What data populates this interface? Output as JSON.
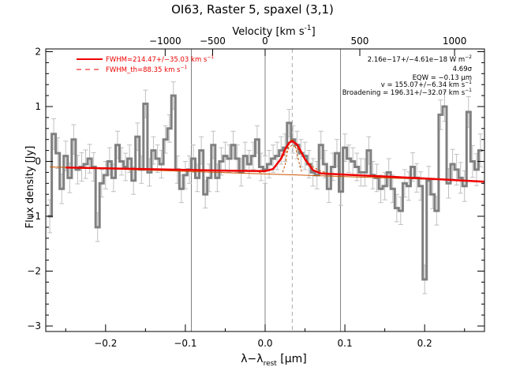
{
  "chart_data": {
    "type": "line",
    "title": "OI63, Raster 5, spaxel (3,1)",
    "xlabel": "λ−λ",
    "xlabel_sub": "rest",
    "xlabel_unit": " [μm]",
    "ylabel": "Flux density [Jy]",
    "top_axis_label": "Velocity [km s",
    "top_axis_label_exp": "-1",
    "top_axis_label_end": "]",
    "xlim": [
      -0.275,
      0.275
    ],
    "ylim": [
      -3.1,
      2.05
    ],
    "xticks": [
      -0.2,
      -0.1,
      0.0,
      0.1,
      0.2
    ],
    "xtick_labels": [
      "−0.2",
      "−0.1",
      "0.0",
      "0.1",
      "0.2"
    ],
    "yticks": [
      -3,
      -2,
      -1,
      0,
      1,
      2
    ],
    "ytick_labels": [
      "−3",
      "−2",
      "−1",
      "0",
      "1",
      "2"
    ],
    "top_ticks_x": [
      -0.1253,
      -0.0658,
      0.0,
      0.1187,
      0.2375
    ],
    "top_tick_labels": [
      "−1000",
      "−500",
      "0",
      "500",
      "1000"
    ],
    "vertical_lines_solid": [
      -0.0925,
      0.0,
      0.0945
    ],
    "vertical_line_dashed": 0.034,
    "legend": [
      {
        "label": "FWHM=214.47+/−35.03 km s",
        "sup": "−1",
        "style": "solid"
      },
      {
        "label": "FWHM_th=88.35 km s",
        "sup": "−1",
        "style": "dashed"
      }
    ],
    "annotations": [
      {
        "text": "2.16e−17+/−4.61e−18 W m",
        "sup": "−2"
      },
      {
        "text": "4.69σ",
        "sup": ""
      },
      {
        "text": "EQW = −0.13 μm",
        "sup": ""
      },
      {
        "text": "v = 155.07+/−6.34 km s",
        "sup": "−1"
      },
      {
        "text": "Broadening = 196.31+/−32.07 km s",
        "sup": "−1"
      }
    ],
    "series": [
      {
        "x": [
          -0.27,
          -0.265,
          -0.26,
          -0.255,
          -0.25,
          -0.245,
          -0.24,
          -0.235,
          -0.23,
          -0.225,
          -0.22,
          -0.215,
          -0.21,
          -0.205,
          -0.2,
          -0.195,
          -0.19,
          -0.185,
          -0.18,
          -0.175,
          -0.17,
          -0.165,
          -0.16,
          -0.155,
          -0.15,
          -0.145,
          -0.14,
          -0.135,
          -0.13,
          -0.125,
          -0.12,
          -0.115,
          -0.11,
          -0.105,
          -0.1,
          -0.095,
          -0.09,
          -0.085,
          -0.08,
          -0.075,
          -0.07,
          -0.065,
          -0.06,
          -0.055,
          -0.05,
          -0.045,
          -0.04,
          -0.035,
          -0.03,
          -0.025,
          -0.02,
          -0.015,
          -0.01,
          -0.005,
          0.0,
          0.005,
          0.01,
          0.015,
          0.02,
          0.025,
          0.03,
          0.035,
          0.04,
          0.045,
          0.05,
          0.055,
          0.06,
          0.065,
          0.07,
          0.075,
          0.08,
          0.085,
          0.09,
          0.095,
          0.1,
          0.105,
          0.11,
          0.115,
          0.12,
          0.125,
          0.13,
          0.135,
          0.14,
          0.145,
          0.15,
          0.155,
          0.16,
          0.165,
          0.17,
          0.175,
          0.18,
          0.185,
          0.19,
          0.195,
          0.2,
          0.205,
          0.21,
          0.215,
          0.22,
          0.225,
          0.23,
          0.235,
          0.24,
          0.245,
          0.25,
          0.255,
          0.26,
          0.265,
          0.27
        ],
        "y": [
          -1.0,
          0.5,
          0.15,
          -0.5,
          0.1,
          -0.3,
          0.4,
          -0.15,
          -0.1,
          -0.05,
          0.05,
          -0.1,
          -1.2,
          -0.4,
          -0.25,
          0.0,
          -0.3,
          0.3,
          0.0,
          -0.1,
          0.05,
          -0.35,
          0.45,
          -0.15,
          1.05,
          -0.2,
          0.2,
          0.05,
          -0.05,
          0.4,
          0.6,
          1.2,
          -0.15,
          -0.5,
          -0.25,
          -0.15,
          0.05,
          -0.3,
          0.2,
          -0.6,
          -0.3,
          0.3,
          -0.3,
          0.0,
          0.1,
          0.05,
          0.3,
          0.05,
          -0.2,
          0.1,
          -0.05,
          0.1,
          0.4,
          -0.1,
          -0.15,
          -0.05,
          0.05,
          0.1,
          0.2,
          0.25,
          0.7,
          0.4,
          0.3,
          0.15,
          0.1,
          -0.05,
          -0.2,
          -0.25,
          0.3,
          -0.05,
          -0.5,
          -0.1,
          0.15,
          -0.55,
          0.25,
          0.05,
          0.0,
          -0.1,
          -0.2,
          -0.2,
          0.2,
          -0.25,
          -0.3,
          -0.5,
          -0.45,
          -0.2,
          -0.5,
          -0.85,
          -0.9,
          -0.4,
          -0.45,
          -0.1,
          -0.3,
          -0.45,
          -2.15,
          -0.35,
          -0.6,
          -0.9,
          0.85,
          1.0,
          -0.4,
          -0.05,
          -0.15,
          -0.3,
          -0.45,
          0.9,
          0.0,
          -0.15,
          0.2
        ],
        "err": [
          0.3,
          0.28,
          0.28,
          0.27,
          0.27,
          0.27,
          0.27,
          0.26,
          0.26,
          0.26,
          0.26,
          0.26,
          0.26,
          0.25,
          0.25,
          0.25,
          0.25,
          0.25,
          0.25,
          0.25,
          0.25,
          0.25,
          0.25,
          0.25,
          0.25,
          0.25,
          0.25,
          0.25,
          0.25,
          0.25,
          0.25,
          0.25,
          0.25,
          0.25,
          0.25,
          0.25,
          0.25,
          0.25,
          0.25,
          0.25,
          0.25,
          0.25,
          0.25,
          0.25,
          0.25,
          0.25,
          0.25,
          0.25,
          0.25,
          0.25,
          0.25,
          0.25,
          0.25,
          0.25,
          0.25,
          0.25,
          0.25,
          0.25,
          0.25,
          0.25,
          0.25,
          0.25,
          0.25,
          0.25,
          0.25,
          0.25,
          0.25,
          0.25,
          0.25,
          0.25,
          0.25,
          0.25,
          0.25,
          0.25,
          0.25,
          0.25,
          0.25,
          0.25,
          0.25,
          0.25,
          0.25,
          0.25,
          0.25,
          0.25,
          0.25,
          0.25,
          0.25,
          0.25,
          0.25,
          0.25,
          0.26,
          0.26,
          0.26,
          0.26,
          0.26,
          0.26,
          0.26,
          0.26,
          0.27,
          0.27,
          0.27,
          0.27,
          0.28,
          0.28,
          0.28,
          0.28,
          0.29,
          0.29,
          0.3
        ],
        "color": "#808080"
      },
      {
        "x": [
          -0.25,
          -0.15,
          -0.05,
          0.0,
          0.01,
          0.02,
          0.025,
          0.03,
          0.034,
          0.04,
          0.045,
          0.05,
          0.06,
          0.07,
          0.1,
          0.2,
          0.275
        ],
        "y": [
          -0.11,
          -0.14,
          -0.17,
          -0.175,
          -0.14,
          0.05,
          0.22,
          0.34,
          0.37,
          0.31,
          0.18,
          0.04,
          -0.16,
          -0.22,
          -0.24,
          -0.31,
          -0.37
        ],
        "color": "#ee0000"
      },
      {
        "x": [
          0.022,
          0.025,
          0.028,
          0.031,
          0.034,
          0.037,
          0.04,
          0.043,
          0.046
        ],
        "y": [
          -0.2,
          -0.06,
          0.18,
          0.36,
          0.41,
          0.33,
          0.14,
          -0.05,
          -0.2
        ],
        "color": "#cc5500"
      },
      {
        "x": [
          -0.008,
          0.0,
          0.01,
          0.02,
          0.03,
          0.034,
          0.04,
          0.05,
          0.06,
          0.07,
          0.078
        ],
        "y": [
          -0.2,
          -0.19,
          -0.14,
          0.03,
          0.25,
          0.3,
          0.24,
          0.05,
          -0.1,
          -0.18,
          -0.21
        ],
        "color": "#cc5500"
      },
      {
        "x": [
          -0.27,
          0.275
        ],
        "y": [
          -0.1,
          -0.36
        ],
        "color": "#cc5500"
      }
    ],
    "colors": {
      "data": "#808080",
      "fit": "#ee0000",
      "components": "#cc5500",
      "axes": "#000000",
      "vlines": "#808080"
    }
  }
}
